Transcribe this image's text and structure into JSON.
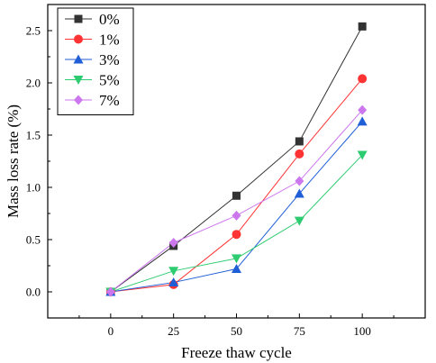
{
  "chart_data": {
    "type": "line",
    "xlabel": "Freeze thaw cycle",
    "ylabel": "Mass loss rate (%)",
    "x": [
      0,
      25,
      50,
      75,
      100
    ],
    "xlim": [
      -25,
      125
    ],
    "ylim": [
      -0.25,
      2.75
    ],
    "xticks": [
      0,
      25,
      50,
      75,
      100
    ],
    "yticks": [
      0.0,
      0.5,
      1.0,
      1.5,
      2.0,
      2.5
    ],
    "ytick_labels": [
      "0.0",
      "0.5",
      "1.0",
      "1.5",
      "2.0",
      "2.5"
    ],
    "grid": false,
    "legend_position": "top-left",
    "series": [
      {
        "name": "0%",
        "color": "#333333",
        "marker": "square",
        "values": [
          0.0,
          0.44,
          0.92,
          1.44,
          2.54
        ]
      },
      {
        "name": "1%",
        "color": "#ff3333",
        "marker": "circle",
        "values": [
          0.0,
          0.07,
          0.55,
          1.32,
          2.04
        ]
      },
      {
        "name": "3%",
        "color": "#1f5ed6",
        "marker": "triangle-up",
        "values": [
          0.0,
          0.09,
          0.22,
          0.94,
          1.63
        ]
      },
      {
        "name": "5%",
        "color": "#2ecc71",
        "marker": "triangle-down",
        "values": [
          0.0,
          0.2,
          0.32,
          0.68,
          1.31
        ]
      },
      {
        "name": "7%",
        "color": "#cc77ee",
        "marker": "diamond",
        "values": [
          0.0,
          0.47,
          0.73,
          1.06,
          1.74
        ]
      }
    ]
  }
}
